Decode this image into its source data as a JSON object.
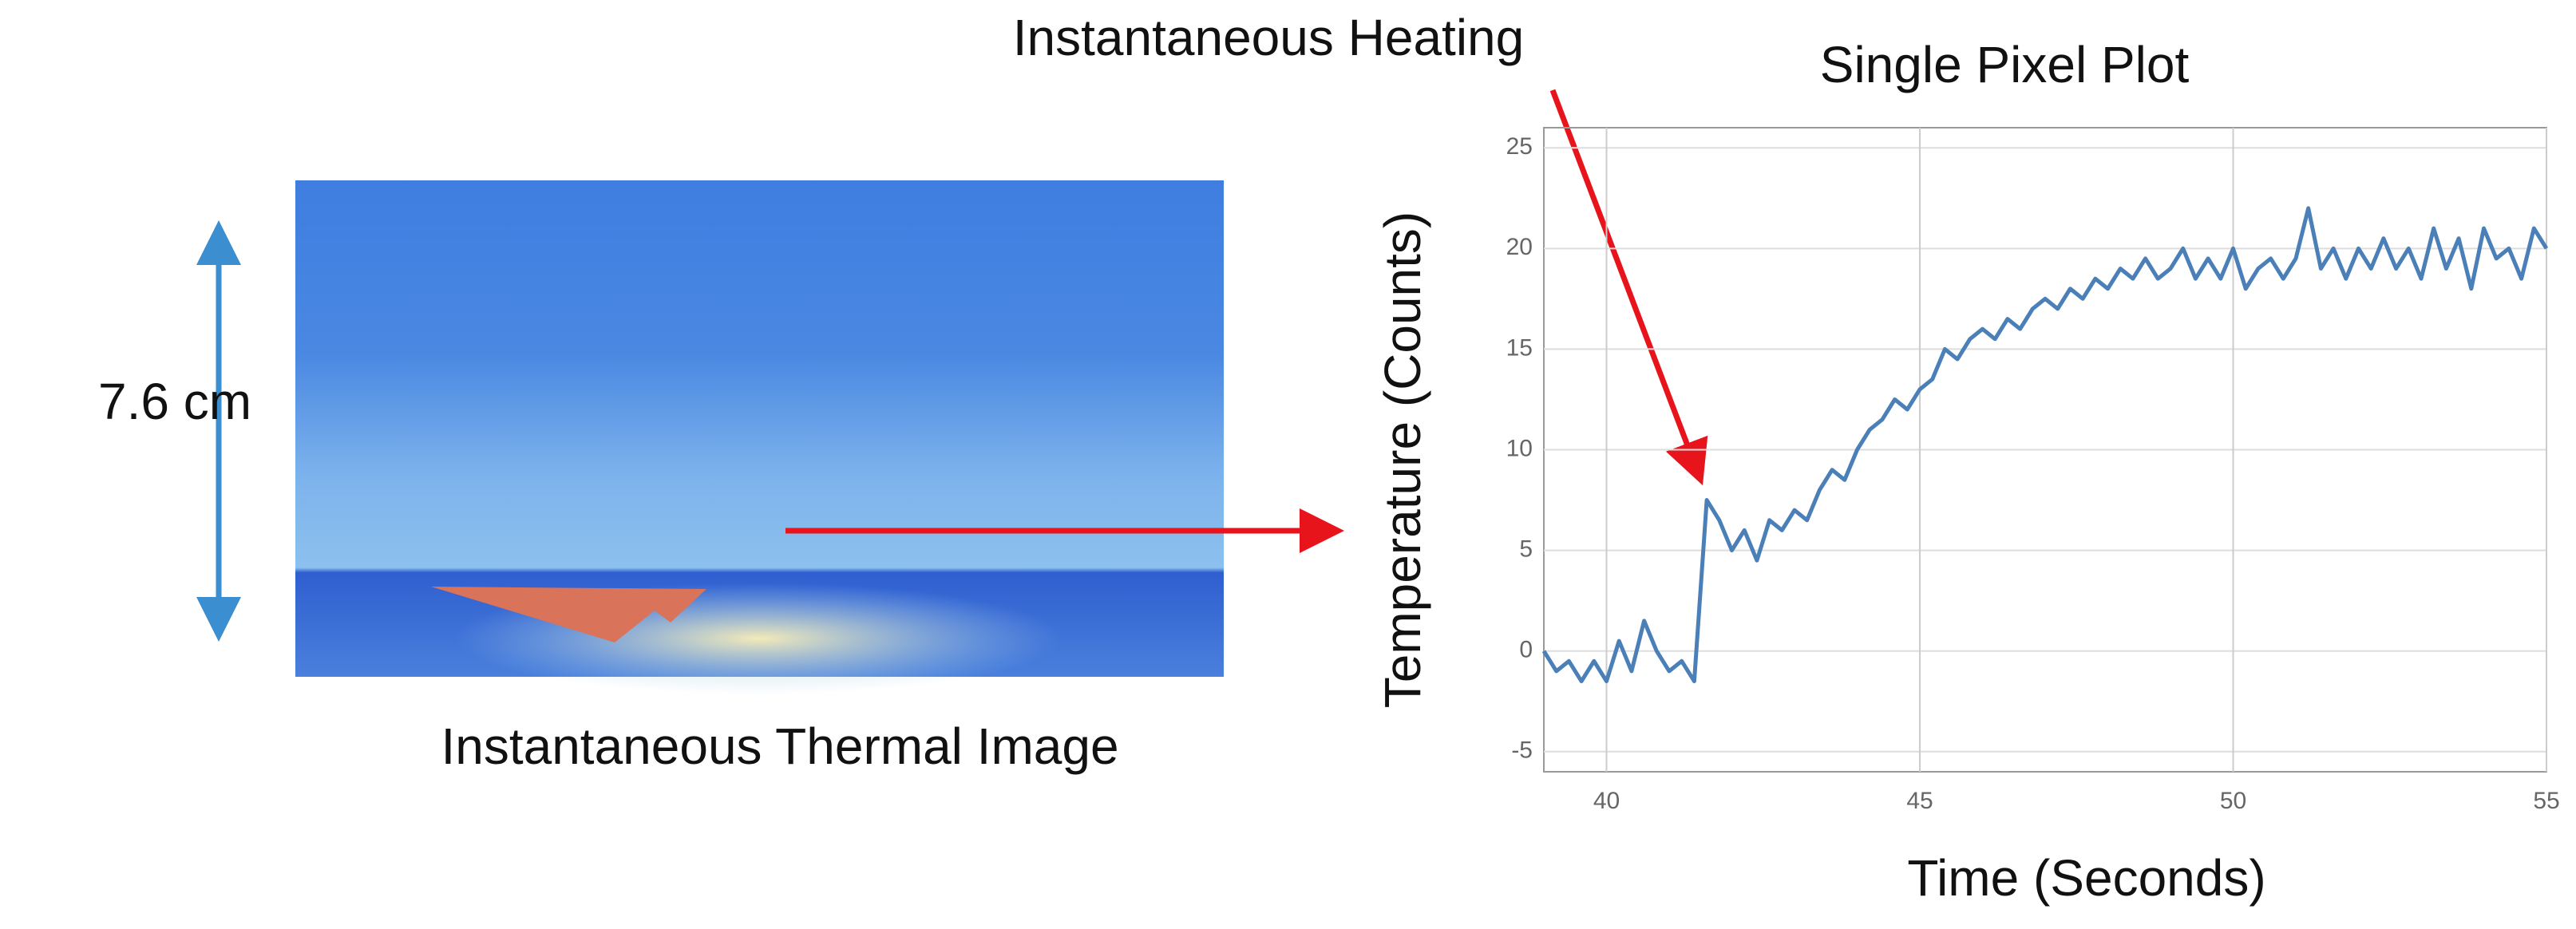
{
  "image": {
    "caption": "Instantaneous Thermal Image",
    "scale_label": "7.6 cm"
  },
  "chart_data": {
    "type": "line",
    "title": "Single Pixel Plot",
    "annotation": "Instantaneous Heating",
    "xlabel": "Time (Seconds)",
    "ylabel": "Temperature (Counts)",
    "x": [
      39.0,
      39.2,
      39.4,
      39.6,
      39.8,
      40.0,
      40.2,
      40.4,
      40.6,
      40.8,
      41.0,
      41.2,
      41.4,
      41.6,
      41.8,
      42.0,
      42.2,
      42.4,
      42.6,
      42.8,
      43.0,
      43.2,
      43.4,
      43.6,
      43.8,
      44.0,
      44.2,
      44.4,
      44.6,
      44.8,
      45.0,
      45.2,
      45.4,
      45.6,
      45.8,
      46.0,
      46.2,
      46.4,
      46.6,
      46.8,
      47.0,
      47.2,
      47.4,
      47.6,
      47.8,
      48.0,
      48.2,
      48.4,
      48.6,
      48.8,
      49.0,
      49.2,
      49.4,
      49.6,
      49.8,
      50.0,
      50.2,
      50.4,
      50.6,
      50.8,
      51.0,
      51.2,
      51.4,
      51.6,
      51.8,
      52.0,
      52.2,
      52.4,
      52.6,
      52.8,
      53.0,
      53.2,
      53.4,
      53.6,
      53.8,
      54.0,
      54.2,
      54.4,
      54.6,
      54.8,
      55.0
    ],
    "values": [
      0,
      -1,
      -0.5,
      -1.5,
      -0.5,
      -1.5,
      0.5,
      -1,
      1.5,
      0,
      -1,
      -0.5,
      -1.5,
      7.5,
      6.5,
      5,
      6,
      4.5,
      6.5,
      6,
      7,
      6.5,
      8,
      9,
      8.5,
      10,
      11,
      11.5,
      12.5,
      12,
      13,
      13.5,
      15,
      14.5,
      15.5,
      16,
      15.5,
      16.5,
      16,
      17,
      17.5,
      17,
      18,
      17.5,
      18.5,
      18,
      19,
      18.5,
      19.5,
      18.5,
      19,
      20,
      18.5,
      19.5,
      18.5,
      20,
      18,
      19,
      19.5,
      18.5,
      19.5,
      22,
      19,
      20,
      18.5,
      20,
      19,
      20.5,
      19,
      20,
      18.5,
      21,
      19,
      20.5,
      18,
      21,
      19.5,
      20,
      18.5,
      21,
      20
    ],
    "color": "#4a7fb8",
    "xlim": [
      39,
      55
    ],
    "xticks": [
      40,
      45,
      50,
      55
    ],
    "ylim": [
      -6,
      26
    ],
    "yticks": [
      -5,
      0,
      5,
      10,
      15,
      20,
      25
    ],
    "grid": true
  }
}
